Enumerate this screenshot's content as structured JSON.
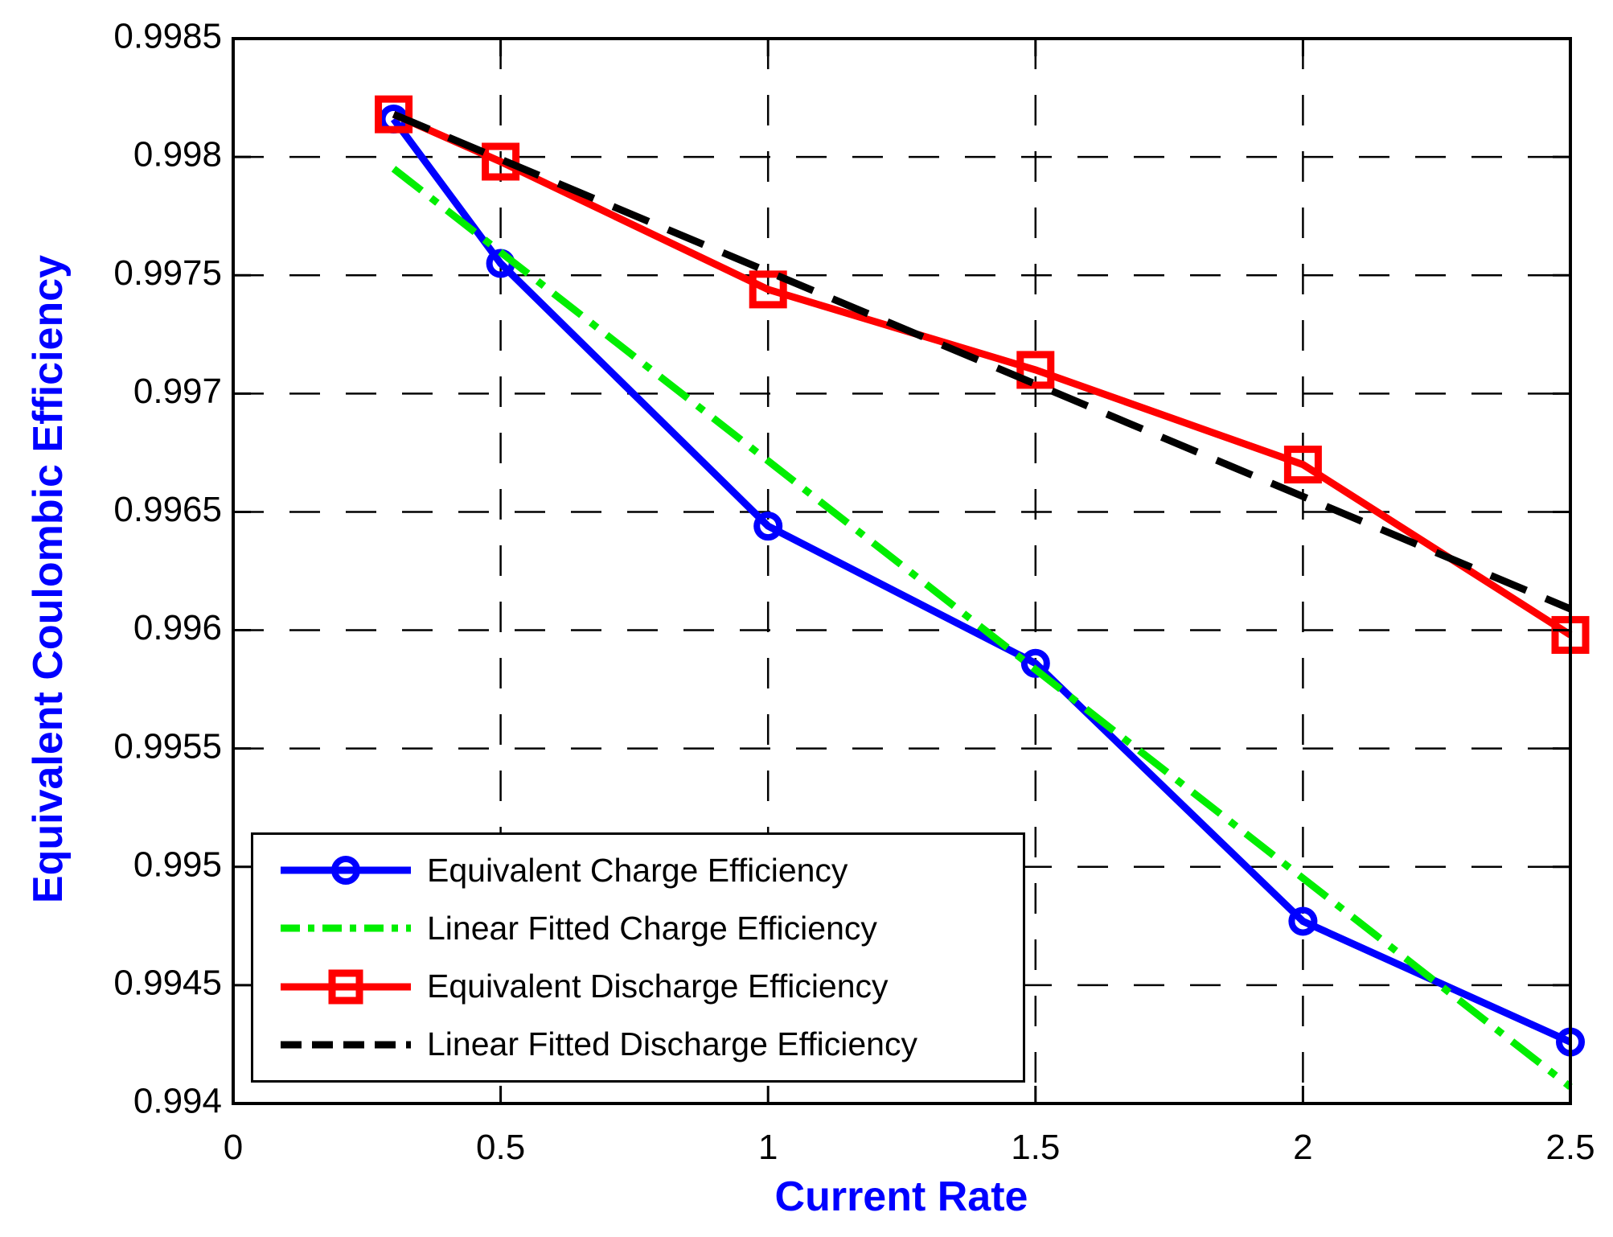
{
  "figure": {
    "background": "#ffffff",
    "axes_color": "#000000",
    "grid_color": "#000000",
    "tick_label_color": "#000000",
    "axis_label_color": "#0000ff"
  },
  "chart_data": {
    "type": "line",
    "title": "",
    "xlabel": "Current Rate",
    "ylabel": "Equivalent Coulombic Efficiency",
    "xlim": [
      0,
      2.5
    ],
    "ylim": [
      0.994,
      0.9985
    ],
    "grid": true,
    "legend_position": "lower-left",
    "x_ticks": [
      0,
      0.5,
      1,
      1.5,
      2,
      2.5
    ],
    "x_tick_labels": [
      "0",
      "0.5",
      "1",
      "1.5",
      "2",
      "2.5"
    ],
    "y_ticks": [
      0.994,
      0.9945,
      0.995,
      0.9955,
      0.996,
      0.9965,
      0.997,
      0.9975,
      0.998,
      0.9985
    ],
    "y_tick_labels": [
      "0.994",
      "0.9945",
      "0.995",
      "0.9955",
      "0.996",
      "0.9965",
      "0.997",
      "0.9975",
      "0.998",
      "0.9985"
    ],
    "series": [
      {
        "name": "Equivalent Charge Efficiency",
        "color": "#0000ff",
        "line_style": "solid",
        "marker": "circle",
        "x": [
          0.3,
          0.5,
          1.0,
          1.5,
          2.0,
          2.5
        ],
        "y": [
          0.99816,
          0.99755,
          0.99644,
          0.99586,
          0.99477,
          0.99426
        ]
      },
      {
        "name": "Linear Fitted Charge Efficiency",
        "color": "#00ee00",
        "line_style": "dashdot",
        "marker": "none",
        "x": [
          0.3,
          2.5
        ],
        "y": [
          0.99795,
          0.99407
        ]
      },
      {
        "name": "Equivalent Discharge Efficiency",
        "color": "#ff0000",
        "line_style": "solid",
        "marker": "square",
        "x": [
          0.3,
          0.5,
          1.0,
          1.5,
          2.0,
          2.5
        ],
        "y": [
          0.99818,
          0.99798,
          0.99744,
          0.9971,
          0.9967,
          0.99598
        ]
      },
      {
        "name": "Linear Fitted Discharge Efficiency",
        "color": "#000000",
        "line_style": "dashed",
        "marker": "none",
        "x": [
          0.3,
          2.5
        ],
        "y": [
          0.99818,
          0.99609
        ]
      }
    ]
  }
}
